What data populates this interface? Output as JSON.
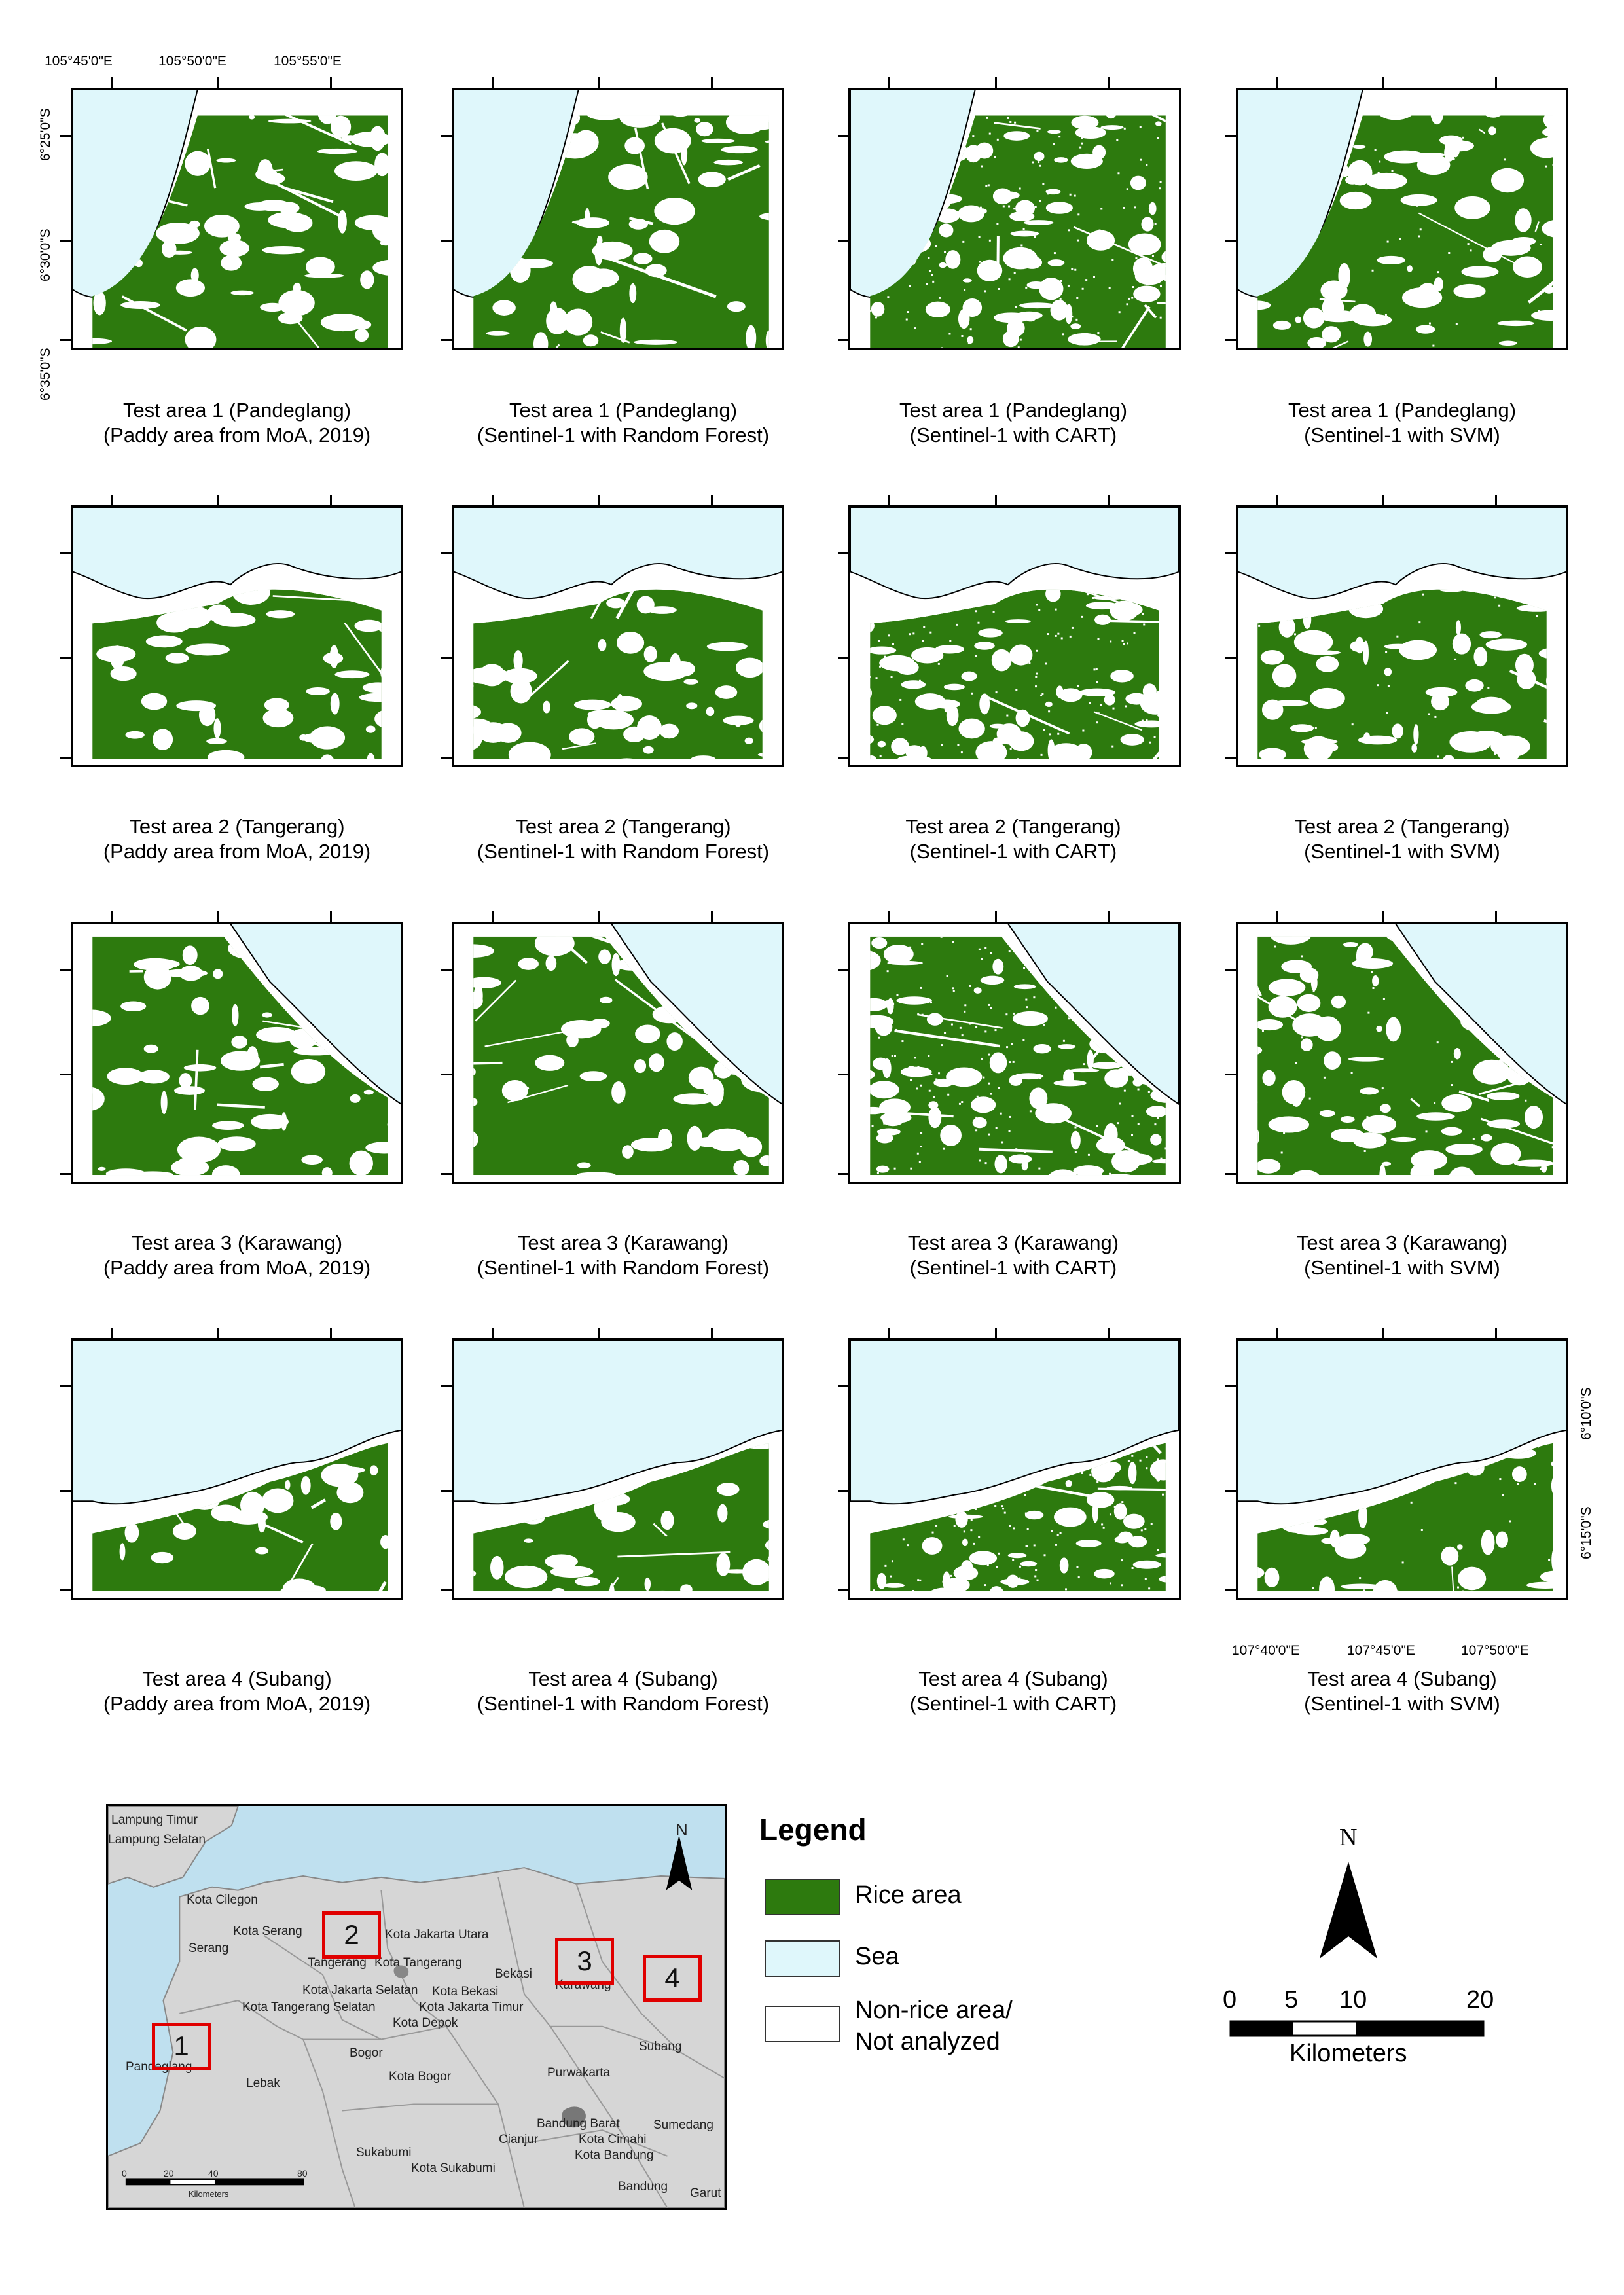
{
  "coords": {
    "top_lon": [
      "105°45'0\"E",
      "105°50'0\"E",
      "105°55'0\"E"
    ],
    "left_lat": [
      "6°25'0\"S",
      "6°30'0\"S",
      "6°35'0\"S"
    ],
    "right_lat": [
      "6°10'0\"S",
      "6°15'0\"S"
    ],
    "bottom_lon": [
      "107°40'0\"E",
      "107°45'0\"E",
      "107°50'0\"E"
    ]
  },
  "captions": [
    {
      "line1": "Test area 1 (Pandeglang)",
      "line2": "(Paddy area from MoA, 2019)"
    },
    {
      "line1": "Test area 1 (Pandeglang)",
      "line2": "(Sentinel-1 with Random Forest)"
    },
    {
      "line1": "Test area 1 (Pandeglang)",
      "line2": "(Sentinel-1 with CART)"
    },
    {
      "line1": "Test area 1 (Pandeglang)",
      "line2": "(Sentinel-1 with SVM)"
    },
    {
      "line1": "Test area 2 (Tangerang)",
      "line2": "(Paddy area from MoA, 2019)"
    },
    {
      "line1": "Test area 2 (Tangerang)",
      "line2": "(Sentinel-1 with Random Forest)"
    },
    {
      "line1": "Test area 2 (Tangerang)",
      "line2": "(Sentinel-1 with CART)"
    },
    {
      "line1": "Test area 2 (Tangerang)",
      "line2": "(Sentinel-1 with SVM)"
    },
    {
      "line1": "Test area 3 (Karawang)",
      "line2": "(Paddy area from MoA, 2019)"
    },
    {
      "line1": "Test area 3 (Karawang)",
      "line2": "(Sentinel-1 with Random Forest)"
    },
    {
      "line1": "Test area 3 (Karawang)",
      "line2": "(Sentinel-1 with CART)"
    },
    {
      "line1": "Test area 3 (Karawang)",
      "line2": "(Sentinel-1 with SVM)"
    },
    {
      "line1": "Test area 4 (Subang)",
      "line2": "(Paddy area from MoA, 2019)"
    },
    {
      "line1": "Test area 4 (Subang)",
      "line2": "(Sentinel-1 with Random Forest)"
    },
    {
      "line1": "Test area 4 (Subang)",
      "line2": "(Sentinel-1 with CART)"
    },
    {
      "line1": "Test area 4 (Subang)",
      "line2": "(Sentinel-1 with SVM)"
    }
  ],
  "inset": {
    "north": "N",
    "places": [
      "Lampung Timur",
      "Lampung Selatan",
      "Kota Cilegon",
      "Kota Serang",
      "Serang",
      "Tangerang",
      "Kota Jakarta Utara",
      "Kota Tangerang",
      "Bekasi",
      "Kota Jakarta Selatan",
      "Kota Bekasi",
      "Kota Tangerang Selatan",
      "Kota Jakarta Timur",
      "Kota Depok",
      "Karawang",
      "Pandeglang",
      "Lebak",
      "Bogor",
      "Kota Bogor",
      "Subang",
      "Purwakarta",
      "Bandung Barat",
      "Sumedang",
      "Kota Cimahi",
      "Kota Bandung",
      "Sukabumi",
      "Cianjur",
      "Kota Sukabumi",
      "Bandung",
      "Garut"
    ],
    "areas": [
      "1",
      "2",
      "3",
      "4"
    ],
    "scale_ticks": [
      "0",
      "20",
      "40",
      "80"
    ],
    "scale_unit": "Kilometers"
  },
  "legend": {
    "title": "Legend",
    "items": [
      {
        "label": "Rice area",
        "color": "#2d7a0e"
      },
      {
        "label": "Sea",
        "color": "#dff7fb"
      },
      {
        "label": "Non-rice area/",
        "label2": "Not analyzed",
        "color": "#ffffff"
      }
    ]
  },
  "scale": {
    "north": "N",
    "ticks": [
      "0",
      "5",
      "10",
      "20"
    ],
    "unit": "Kilometers"
  },
  "colors": {
    "rice": "#2d7a0e",
    "sea": "#dff7fb",
    "land_inset": "#d6d6d6",
    "water_inset": "#bfe0ef",
    "highlight": "#e00000"
  }
}
